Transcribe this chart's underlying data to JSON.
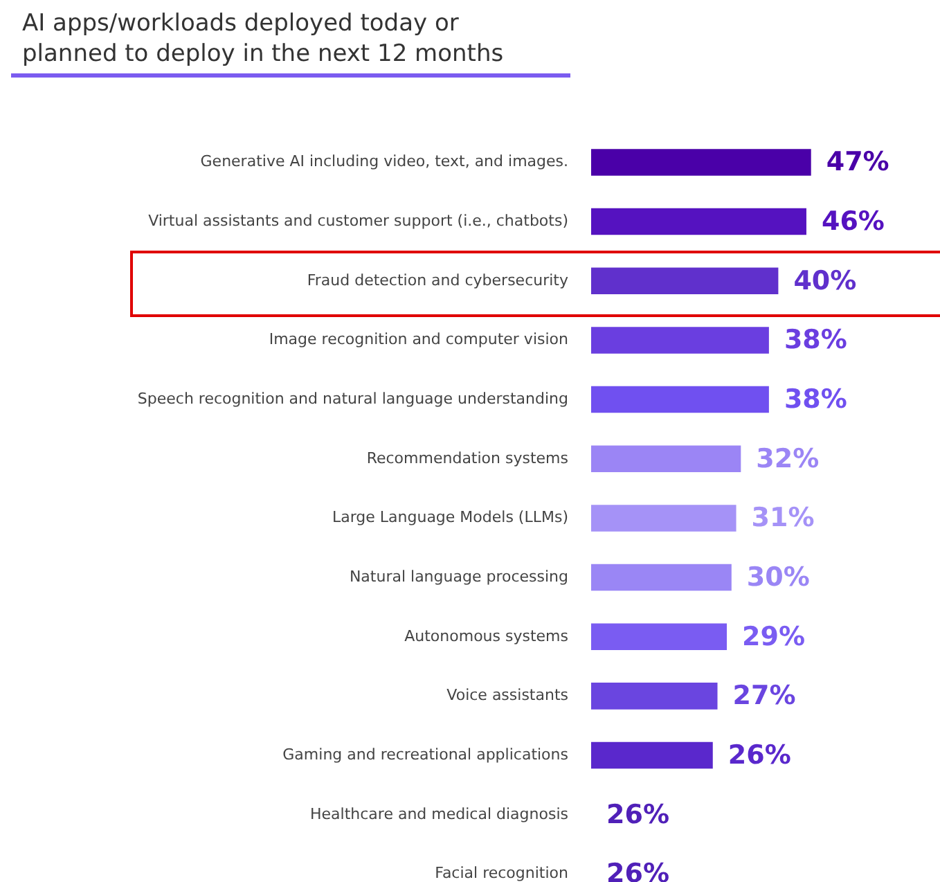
{
  "chart_data": {
    "type": "bar",
    "orientation": "horizontal",
    "title": "AI apps/workloads deployed today or\nplanned to deploy in the next 12 months",
    "categories": [
      "Generative AI including video, text, and images.",
      "Virtual assistants and customer support (i.e., chatbots)",
      "Fraud detection and cybersecurity",
      "Image recognition and computer vision",
      "Speech recognition and natural language understanding",
      "Recommendation systems",
      "Large Language Models (LLMs)",
      "Natural language processing",
      "Autonomous systems",
      "Voice assistants",
      "Gaming and recreational applications",
      "Healthcare and medical diagnosis",
      "Facial recognition"
    ],
    "values": [
      47,
      46,
      40,
      38,
      38,
      32,
      31,
      30,
      29,
      27,
      26,
      null,
      null
    ],
    "value_labels": [
      "47%",
      "46%",
      "40%",
      "38%",
      "38%",
      "32%",
      "31%",
      "30%",
      "29%",
      "27%",
      "26%",
      "26%",
      "26%"
    ],
    "colors": [
      "#4a00a8",
      "#5512c0",
      "#6030cc",
      "#6a3ee0",
      "#7050f0",
      "#9b85f5",
      "#a592f7",
      "#9a86f5",
      "#7a5cf2",
      "#6a45e0",
      "#5a28cc",
      "#5020b8",
      "#5020b8"
    ]
  }
}
